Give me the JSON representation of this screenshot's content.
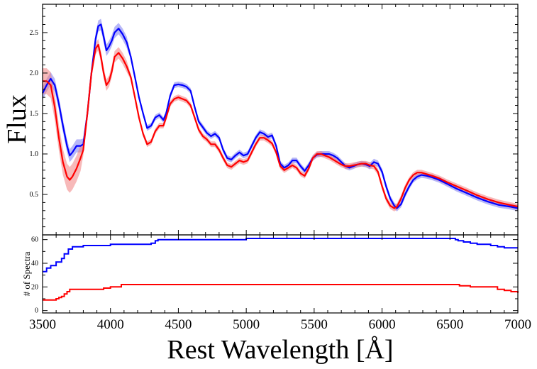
{
  "chart_data": [
    {
      "type": "line",
      "panel": "top",
      "ylabel": "Flux",
      "xlim": [
        3500,
        7000
      ],
      "ylim": [
        0,
        2.85
      ],
      "yticks": [
        "0.5",
        "1.0",
        "1.5",
        "2.0",
        "2.5"
      ],
      "ytick_values": [
        0.5,
        1.0,
        1.5,
        2.0,
        2.5
      ],
      "series": [
        {
          "color": "#0000ff",
          "band_color": "#7b7bf0",
          "x": [
            3500,
            3530,
            3560,
            3590,
            3620,
            3650,
            3680,
            3700,
            3720,
            3750,
            3780,
            3800,
            3830,
            3860,
            3890,
            3910,
            3930,
            3950,
            3970,
            3990,
            4010,
            4030,
            4060,
            4090,
            4120,
            4150,
            4180,
            4210,
            4240,
            4270,
            4300,
            4330,
            4360,
            4390,
            4410,
            4440,
            4470,
            4500,
            4530,
            4560,
            4590,
            4620,
            4650,
            4680,
            4710,
            4740,
            4770,
            4800,
            4830,
            4860,
            4890,
            4920,
            4950,
            4980,
            5010,
            5040,
            5070,
            5100,
            5130,
            5160,
            5190,
            5220,
            5250,
            5280,
            5310,
            5340,
            5370,
            5400,
            5430,
            5460,
            5490,
            5520,
            5550,
            5580,
            5610,
            5640,
            5670,
            5700,
            5730,
            5760,
            5790,
            5820,
            5850,
            5880,
            5910,
            5940,
            5970,
            6000,
            6030,
            6060,
            6090,
            6110,
            6140,
            6170,
            6200,
            6230,
            6260,
            6290,
            6330,
            6370,
            6420,
            6480,
            6550,
            6620,
            6700,
            6780,
            6860,
            6940,
            7000
          ],
          "y": [
            1.75,
            1.85,
            1.93,
            1.85,
            1.62,
            1.35,
            1.1,
            0.98,
            1.02,
            1.1,
            1.1,
            1.12,
            1.5,
            2.0,
            2.42,
            2.58,
            2.6,
            2.45,
            2.28,
            2.33,
            2.4,
            2.5,
            2.55,
            2.48,
            2.38,
            2.2,
            1.95,
            1.7,
            1.5,
            1.32,
            1.35,
            1.45,
            1.48,
            1.42,
            1.5,
            1.72,
            1.85,
            1.86,
            1.85,
            1.83,
            1.78,
            1.58,
            1.4,
            1.33,
            1.26,
            1.22,
            1.25,
            1.2,
            1.05,
            0.95,
            0.93,
            0.98,
            1.02,
            0.98,
            1.0,
            1.1,
            1.2,
            1.27,
            1.25,
            1.21,
            1.23,
            1.1,
            0.88,
            0.83,
            0.86,
            0.92,
            0.92,
            0.85,
            0.79,
            0.86,
            0.95,
            0.99,
            1.0,
            1.0,
            1.0,
            0.98,
            0.95,
            0.9,
            0.85,
            0.83,
            0.85,
            0.87,
            0.88,
            0.87,
            0.85,
            0.9,
            0.88,
            0.78,
            0.6,
            0.45,
            0.36,
            0.33,
            0.38,
            0.5,
            0.6,
            0.68,
            0.72,
            0.74,
            0.73,
            0.71,
            0.68,
            0.63,
            0.57,
            0.52,
            0.46,
            0.41,
            0.37,
            0.35,
            0.33
          ]
        },
        {
          "color": "#ff0000",
          "band_color": "#f08080",
          "x": [
            3500,
            3530,
            3560,
            3590,
            3620,
            3650,
            3680,
            3700,
            3720,
            3750,
            3780,
            3800,
            3830,
            3860,
            3890,
            3910,
            3930,
            3950,
            3970,
            3990,
            4010,
            4030,
            4060,
            4090,
            4120,
            4150,
            4180,
            4210,
            4240,
            4270,
            4300,
            4330,
            4360,
            4390,
            4410,
            4440,
            4470,
            4500,
            4530,
            4560,
            4590,
            4620,
            4650,
            4680,
            4710,
            4740,
            4770,
            4800,
            4830,
            4860,
            4890,
            4920,
            4950,
            4980,
            5010,
            5040,
            5070,
            5100,
            5130,
            5160,
            5190,
            5220,
            5250,
            5280,
            5310,
            5340,
            5370,
            5400,
            5430,
            5460,
            5490,
            5520,
            5550,
            5580,
            5610,
            5640,
            5670,
            5700,
            5730,
            5760,
            5790,
            5820,
            5850,
            5880,
            5910,
            5940,
            5970,
            6000,
            6030,
            6060,
            6090,
            6110,
            6140,
            6170,
            6200,
            6230,
            6260,
            6290,
            6330,
            6370,
            6420,
            6480,
            6550,
            6620,
            6700,
            6780,
            6860,
            6940,
            7000
          ],
          "y": [
            1.9,
            1.9,
            1.85,
            1.58,
            1.2,
            0.9,
            0.72,
            0.68,
            0.72,
            0.82,
            0.95,
            1.05,
            1.5,
            2.0,
            2.3,
            2.35,
            2.2,
            2.0,
            1.85,
            1.9,
            2.02,
            2.2,
            2.25,
            2.18,
            2.08,
            1.95,
            1.7,
            1.45,
            1.25,
            1.12,
            1.15,
            1.28,
            1.35,
            1.35,
            1.45,
            1.62,
            1.68,
            1.7,
            1.68,
            1.66,
            1.6,
            1.45,
            1.3,
            1.22,
            1.18,
            1.12,
            1.12,
            1.05,
            0.95,
            0.86,
            0.84,
            0.88,
            0.92,
            0.9,
            0.92,
            1.02,
            1.12,
            1.2,
            1.2,
            1.17,
            1.13,
            1.02,
            0.85,
            0.8,
            0.83,
            0.86,
            0.83,
            0.76,
            0.73,
            0.82,
            0.95,
            1.0,
            1.0,
            0.98,
            0.96,
            0.93,
            0.9,
            0.87,
            0.85,
            0.85,
            0.86,
            0.87,
            0.88,
            0.88,
            0.86,
            0.85,
            0.78,
            0.6,
            0.45,
            0.36,
            0.33,
            0.35,
            0.45,
            0.58,
            0.68,
            0.74,
            0.77,
            0.77,
            0.75,
            0.73,
            0.7,
            0.65,
            0.6,
            0.55,
            0.49,
            0.44,
            0.4,
            0.37,
            0.35
          ]
        }
      ]
    },
    {
      "type": "line",
      "panel": "bottom",
      "xlabel": "Rest Wavelength [Å]",
      "ylabel": "# of Spectra",
      "xlim": [
        3500,
        7000
      ],
      "ylim": [
        -2,
        64
      ],
      "xticks": [
        "3500",
        "4000",
        "4500",
        "5000",
        "5500",
        "6000",
        "6500",
        "7000"
      ],
      "xtick_values": [
        3500,
        4000,
        4500,
        5000,
        5500,
        6000,
        6500,
        7000
      ],
      "yticks": [
        "0",
        "20",
        "40",
        "60"
      ],
      "ytick_values": [
        0,
        20,
        40,
        60
      ],
      "series": [
        {
          "color": "#0000ff",
          "x": [
            3500,
            3530,
            3560,
            3600,
            3640,
            3660,
            3690,
            3720,
            3760,
            3800,
            3900,
            4000,
            4300,
            4330,
            4350,
            4500,
            5000,
            6500,
            6540,
            6560,
            6600,
            6650,
            6700,
            6800,
            6850,
            6900,
            7000
          ],
          "y": [
            33,
            36,
            38,
            41,
            44,
            48,
            52,
            54,
            54,
            55,
            55,
            56,
            57,
            59,
            60,
            60,
            61,
            61,
            60,
            59,
            58,
            57,
            56,
            55,
            54,
            53,
            53
          ]
        },
        {
          "color": "#ff0000",
          "x": [
            3500,
            3580,
            3600,
            3620,
            3640,
            3660,
            3680,
            3700,
            3900,
            3950,
            4000,
            4070,
            4080,
            4500,
            5000,
            6550,
            6570,
            6600,
            6650,
            6800,
            6850,
            6900,
            6950,
            7000
          ],
          "y": [
            9,
            9,
            10,
            11,
            12,
            14,
            16,
            18,
            18,
            19,
            20,
            20,
            22,
            22,
            22,
            22,
            21,
            21,
            20,
            20,
            18,
            17,
            16,
            15
          ]
        }
      ]
    }
  ]
}
